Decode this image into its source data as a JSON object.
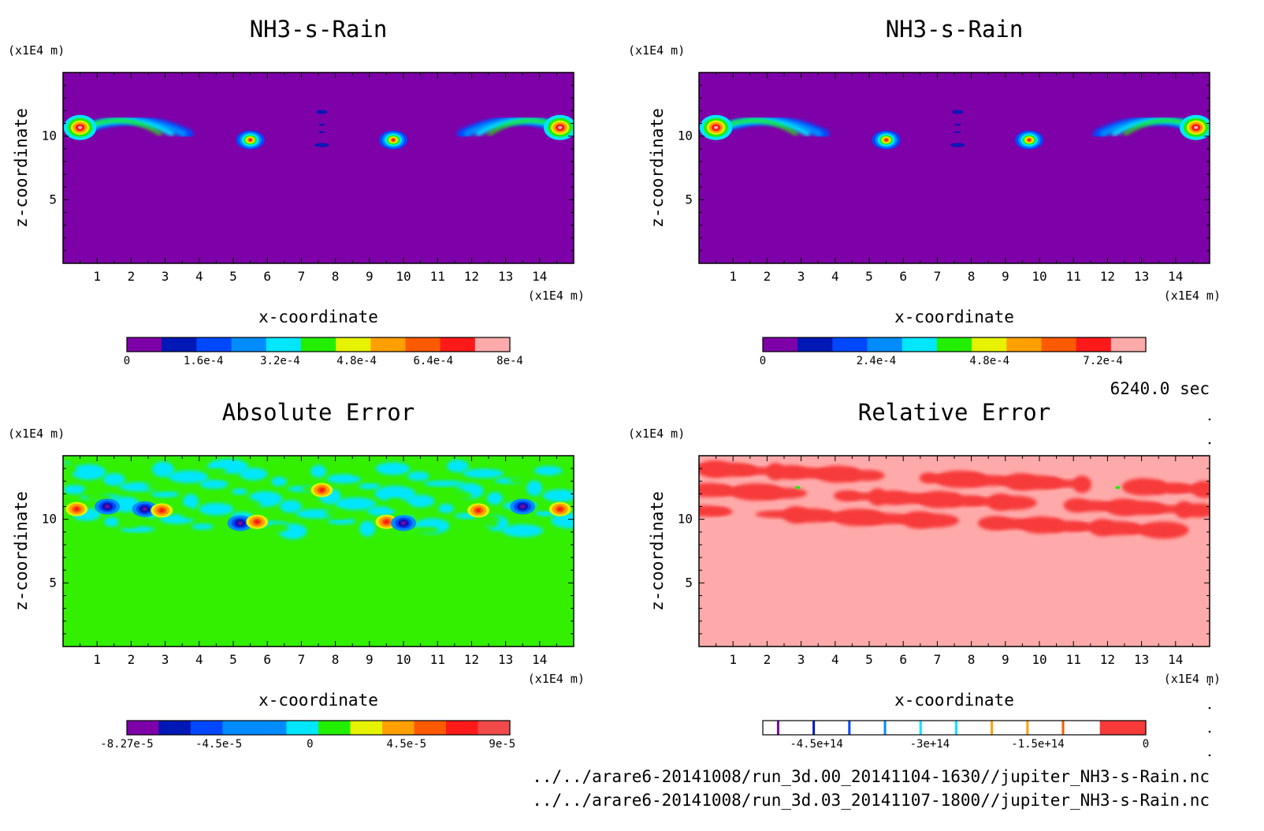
{
  "colors": {
    "purple": "#7e00a8",
    "navy": "#0018b6",
    "blue": "#0048ff",
    "skyblue": "#008cff",
    "cyan": "#00e6ff",
    "green": "#22ee00",
    "yellow": "#e6f200",
    "orange": "#ffa000",
    "red_orange": "#ff5a00",
    "red": "#ff1a1a",
    "pink": "#ffaaaa",
    "salmon": "#f04a4a",
    "bright_red": "#f03a3a",
    "err_green": "#32f000",
    "rel_red": "#f73a3a"
  },
  "units": {
    "x": "(x1E4 m)",
    "z": "(x1E4 m)"
  },
  "x_label": "x-coordinate",
  "z_label": "z-coordinate",
  "time_label": "6240.0 sec",
  "footer": [
    "../../arare6-20141008/run_3d.00_20141104-1630//jupiter_NH3-s-Rain.nc",
    "../../arare6-20141008/run_3d.03_20141107-1800//jupiter_NH3-s-Rain.nc"
  ],
  "chart_data": [
    {
      "type": "heatmap",
      "title": "NH3-s-Rain",
      "xlabel": "x-coordinate",
      "ylabel": "z-coordinate",
      "xlim": [
        0,
        15
      ],
      "ylim": [
        0,
        15
      ],
      "xticks": [
        1,
        2,
        3,
        4,
        5,
        6,
        7,
        8,
        9,
        10,
        11,
        12,
        13,
        14
      ],
      "yticks": [
        5,
        10
      ],
      "background": "purple",
      "features": [
        {
          "shape": "arc",
          "x0": 0.3,
          "x1": 3.7,
          "z": 10.8,
          "peak": 0.0008,
          "hot_x": 0.5
        },
        {
          "shape": "blob",
          "x": 5.5,
          "z": 9.7,
          "peak": 0.0007
        },
        {
          "shape": "streaks",
          "x": 7.6,
          "z": [
            9.3,
            10.3,
            10.9,
            11.9
          ]
        },
        {
          "shape": "blob",
          "x": 9.7,
          "z": 9.7,
          "peak": 0.0007
        },
        {
          "shape": "arc",
          "x0": 11.7,
          "x1": 15,
          "z": 10.8,
          "peak": 0.0008,
          "hot_x": 14.6
        }
      ],
      "colorbar": {
        "min": 0,
        "max": 0.0008,
        "levels": 10,
        "colors": [
          "purple",
          "navy",
          "blue",
          "skyblue",
          "cyan",
          "green",
          "yellow",
          "orange",
          "red_orange",
          "red",
          "pink"
        ],
        "ticks": [
          "0",
          "1.6e-4",
          "3.2e-4",
          "4.8e-4",
          "6.4e-4",
          "8e-4"
        ]
      }
    },
    {
      "type": "heatmap",
      "title": "NH3-s-Rain",
      "xlabel": "x-coordinate",
      "ylabel": "z-coordinate",
      "xlim": [
        0,
        15
      ],
      "ylim": [
        0,
        15
      ],
      "xticks": [
        1,
        2,
        3,
        4,
        5,
        6,
        7,
        8,
        9,
        10,
        11,
        12,
        13,
        14
      ],
      "yticks": [
        5,
        10
      ],
      "background": "purple",
      "features": [
        {
          "shape": "arc",
          "x0": 0.3,
          "x1": 3.7,
          "z": 10.8,
          "peak": 0.0008,
          "hot_x": 0.5
        },
        {
          "shape": "blob",
          "x": 5.5,
          "z": 9.7,
          "peak": 0.0007
        },
        {
          "shape": "streaks",
          "x": 7.6,
          "z": [
            9.3,
            10.3,
            10.9,
            11.9
          ]
        },
        {
          "shape": "blob",
          "x": 9.7,
          "z": 9.7,
          "peak": 0.0007
        },
        {
          "shape": "arc",
          "x0": 11.7,
          "x1": 15,
          "z": 10.8,
          "peak": 0.0008,
          "hot_x": 14.6
        }
      ],
      "colorbar": {
        "min": 0,
        "max": 0.00084,
        "levels": 11,
        "colors": [
          "purple",
          "navy",
          "blue",
          "skyblue",
          "cyan",
          "green",
          "yellow",
          "orange",
          "red_orange",
          "red",
          "pink"
        ],
        "ticks": [
          "0",
          "2.4e-4",
          "4.8e-4",
          "7.2e-4"
        ]
      }
    },
    {
      "type": "heatmap",
      "title": "Absolute Error",
      "xlabel": "x-coordinate",
      "ylabel": "z-coordinate",
      "xlim": [
        0,
        15
      ],
      "ylim": [
        0,
        15
      ],
      "xticks": [
        1,
        2,
        3,
        4,
        5,
        6,
        7,
        8,
        9,
        10,
        11,
        12,
        13,
        14
      ],
      "yticks": [
        5,
        10
      ],
      "background": "err_green",
      "colorbar": {
        "min": -8.27e-05,
        "max": 9e-05,
        "colors": [
          "purple",
          "navy",
          "blue",
          "skyblue",
          "skyblue",
          "cyan",
          "green",
          "yellow",
          "orange",
          "red_orange",
          "red",
          "salmon"
        ],
        "ticks": [
          "-8.27e-5",
          "-4.5e-5",
          "0",
          "4.5e-5",
          "9e-5"
        ]
      }
    },
    {
      "type": "heatmap",
      "title": "Relative Error",
      "xlabel": "x-coordinate",
      "ylabel": "z-coordinate",
      "xlim": [
        0,
        15
      ],
      "ylim": [
        0,
        15
      ],
      "xticks": [
        1,
        2,
        3,
        4,
        5,
        6,
        7,
        8,
        9,
        10,
        11,
        12,
        13,
        14
      ],
      "yticks": [
        5,
        10
      ],
      "background": "pink",
      "colorbar": {
        "min": -550000000000000.0,
        "max": 0,
        "ticks": [
          "-4.5e+14",
          "-3e+14",
          "-1.5e+14",
          "0"
        ]
      }
    }
  ]
}
